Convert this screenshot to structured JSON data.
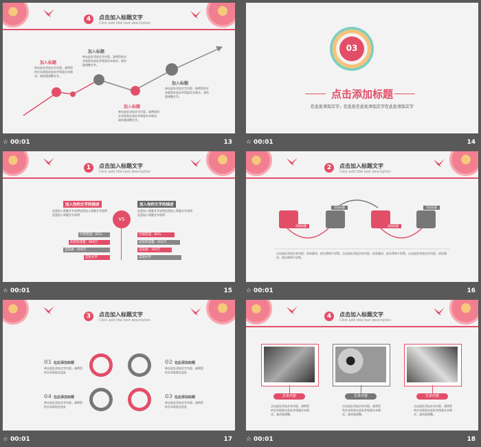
{
  "colors": {
    "accent": "#e24e68",
    "gray": "#777777",
    "bg": "#595959",
    "slide": "#f3f3f3"
  },
  "slides": [
    {
      "number": "13",
      "duration": "00:01",
      "header_num": "4",
      "title": "点击加入标题文字",
      "subtitle": "Click add title text description",
      "labels": [
        "加入标题",
        "加入标题",
        "加入标题",
        "加入标题"
      ],
      "body": "单击此处添加文字内容，请将您的文本粘贴在此处并保留文本格式，请合理调整文字。"
    },
    {
      "number": "14",
      "duration": "00:01",
      "badge": "03",
      "title": "点击添加标题",
      "subtitle": "在此处添加文字，在此处在此处添加文字在此处添加文字"
    },
    {
      "number": "15",
      "duration": "00:01",
      "header_num": "1",
      "title": "点击加入标题文字",
      "subtitle": "Click add title text description",
      "left_heading": "加入你的文字的描述",
      "right_heading": "加入你的文字的描述",
      "vs": "VS",
      "body": "这里加入简要文字说明这里加入简要文字说明这里加入简要文字说明",
      "left_bars": [
        "计划完成：60%",
        "实际完成量：888万",
        "当前类：400万",
        "实际文字"
      ],
      "right_bars": [
        "计划完成：80%",
        "实际完成量：600万",
        "当前类：300万",
        "实际文字"
      ]
    },
    {
      "number": "16",
      "duration": "00:01",
      "header_num": "2",
      "title": "点击加入标题文字",
      "subtitle": "Click add title text description",
      "step_label": "添加标题",
      "body": "点击此处添加文本内容，如关键词、部分简单介绍等。点击此处添加文本内容，如关键词、部分简单介绍等。点击此处添加文本内容，如关键词、部分简单介绍等。"
    },
    {
      "number": "17",
      "duration": "00:01",
      "header_num": "3",
      "title": "点击加入标题文字",
      "subtitle": "Click add title text description",
      "items": [
        {
          "num": "01",
          "title": "在此添加标题"
        },
        {
          "num": "02",
          "title": "在此添加标题"
        },
        {
          "num": "04",
          "title": "在此添加标题"
        },
        {
          "num": "03",
          "title": "在此添加标题"
        }
      ],
      "body": "单击此处添加文字内容，请将您的文本粘贴在此处"
    },
    {
      "number": "18",
      "duration": "00:01",
      "header_num": "4",
      "title": "点击加入标题文字",
      "subtitle": "Click add title text description",
      "pills": [
        "文本内容",
        "文本内容",
        "文本内容"
      ],
      "body": "点击此处添加文本内容，请将您的文本粘贴在此处并保留文本格式，请合理调整。"
    }
  ]
}
